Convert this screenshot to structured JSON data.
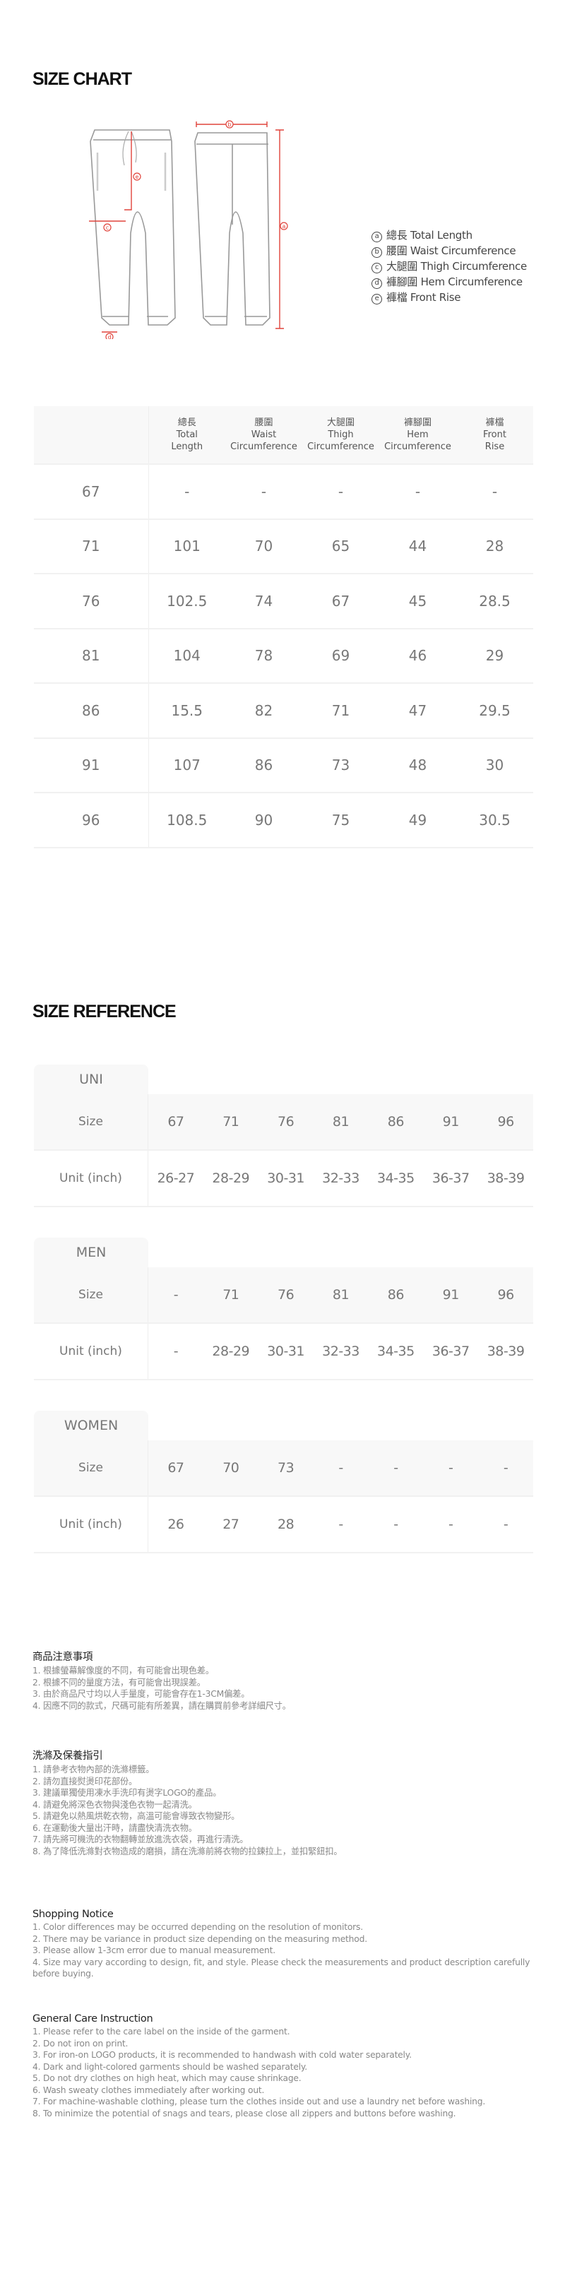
{
  "size_chart": {
    "title": "SIZE CHART",
    "diagram_labels": [
      "a",
      "b",
      "c",
      "d",
      "e"
    ],
    "legend": [
      {
        "mark": "a",
        "label": "總長 Total Length"
      },
      {
        "mark": "b",
        "label": "腰圍 Waist Circumference"
      },
      {
        "mark": "c",
        "label": "大腿圍 Thigh Circumference"
      },
      {
        "mark": "d",
        "label": "褲腳圍 Hem Circumference"
      },
      {
        "mark": "e",
        "label": "褲檔 Front Rise"
      }
    ],
    "columns": [
      {
        "zh": "總長",
        "en1": "Total",
        "en2": "Length"
      },
      {
        "zh": "腰圍",
        "en1": "Waist",
        "en2": "Circumference"
      },
      {
        "zh": "大腿圍",
        "en1": "Thigh",
        "en2": "Circumference"
      },
      {
        "zh": "褲腳圍",
        "en1": "Hem",
        "en2": "Circumference"
      },
      {
        "zh": "褲檔",
        "en1": "Front",
        "en2": "Rise"
      }
    ],
    "rows": [
      [
        "67",
        "-",
        "-",
        "-",
        "-",
        "-"
      ],
      [
        "71",
        "101",
        "70",
        "65",
        "44",
        "28"
      ],
      [
        "76",
        "102.5",
        "74",
        "67",
        "45",
        "28.5"
      ],
      [
        "81",
        "104",
        "78",
        "69",
        "46",
        "29"
      ],
      [
        "86",
        "15.5",
        "82",
        "71",
        "47",
        "29.5"
      ],
      [
        "91",
        "107",
        "86",
        "73",
        "48",
        "30"
      ],
      [
        "96",
        "108.5",
        "90",
        "75",
        "49",
        "30.5"
      ]
    ],
    "accent_color": "#e0433b"
  },
  "size_reference": {
    "title": "SIZE REFERENCE",
    "groups": [
      {
        "name": "UNI",
        "size_label": "Size",
        "unit_label": "Unit (inch)",
        "sizes": [
          "67",
          "71",
          "76",
          "81",
          "86",
          "91",
          "96"
        ],
        "units": [
          "26-27",
          "28-29",
          "30-31",
          "32-33",
          "34-35",
          "36-37",
          "38-39"
        ]
      },
      {
        "name": "MEN",
        "size_label": "Size",
        "unit_label": "Unit (inch)",
        "sizes": [
          "-",
          "71",
          "76",
          "81",
          "86",
          "91",
          "96"
        ],
        "units": [
          "-",
          "28-29",
          "30-31",
          "32-33",
          "34-35",
          "36-37",
          "38-39"
        ]
      },
      {
        "name": "WOMEN",
        "size_label": "Size",
        "unit_label": "Unit (inch)",
        "sizes": [
          "67",
          "70",
          "73",
          "-",
          "-",
          "-",
          "-"
        ],
        "units": [
          "26",
          "27",
          "28",
          "-",
          "-",
          "-",
          "-"
        ]
      }
    ]
  },
  "notes": [
    {
      "title": "商品注意事項",
      "items": [
        "1. 根據螢幕解像度的不同，有可能會出現色差。",
        "2. 根據不同的量度方法，有可能會出現誤差。",
        "3. 由於商品尺寸均以人手量度，可能會存在1-3CM偏差。",
        "4. 因應不同的款式，尺碼可能有所差異，請在購買前參考詳細尺寸。"
      ]
    },
    {
      "title": "洗滌及保養指引",
      "items": [
        "1. 請參考衣物內部的洗滌標籤。",
        "2. 請勿直接熨燙印花部份。",
        "3. 建議單獨使用凍水手洗印有燙字LOGO的產品。",
        "4. 請避免將深色衣物與淺色衣物一起清洗。",
        "5. 請避免以熱風烘乾衣物，高溫可能會導致衣物變形。",
        "6. 在運動後大量出汗時，請盡快清洗衣物。",
        "7. 請先將可機洗的衣物翻轉並放進洗衣袋，再進行清洗。",
        "8. 為了降低洗滌對衣物造成的磨損，請在洗滌前將衣物的拉鍊拉上，並扣緊鈕扣。"
      ]
    },
    {
      "title": "Shopping Notice",
      "items": [
        "1. Color differences may be occurred depending on the resolution of monitors.",
        "2. There may be variance in product size depending on the measuring method.",
        "3. Please allow 1-3cm error due to manual measurement.",
        "4. Size may vary according to design, fit, and style. Please check the measurements and product description carefully before buying."
      ]
    },
    {
      "title": "General Care Instruction",
      "items": [
        "1. Please refer to the care label on the inside of the garment.",
        "2. Do not iron on print.",
        "3. For iron-on LOGO products, it is recommended to handwash with cold water separately.",
        "4. Dark and light-colored garments should be washed separately.",
        "5. Do not dry clothes on high heat, which may cause shrinkage.",
        "6. Wash sweaty clothes immediately after working out.",
        "7. For machine-washable clothing, please turn the clothes inside out and use a laundry net before washing.",
        "8. To minimize the potential of snags and tears, please close all zippers and buttons before washing."
      ]
    }
  ]
}
